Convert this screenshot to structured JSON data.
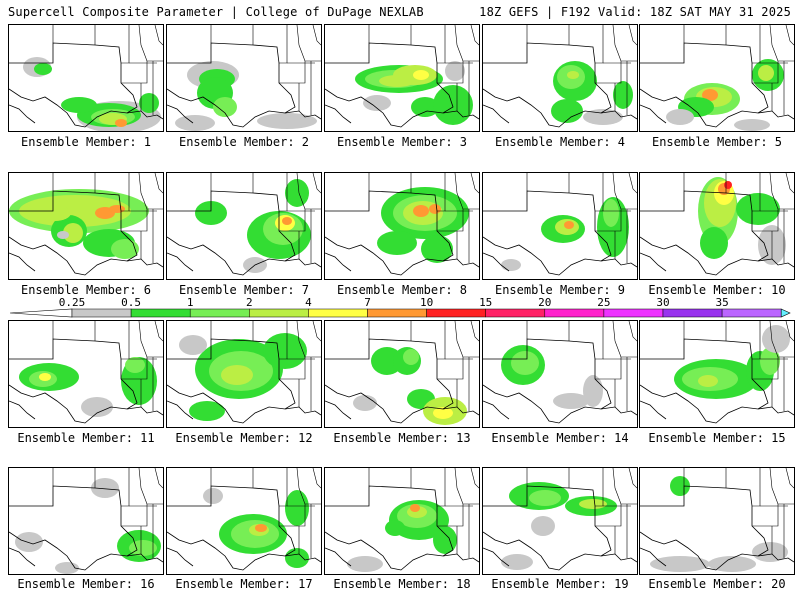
{
  "header": {
    "title": "Supercell Composite Parameter | College of DuPage NEXLAB",
    "run_info": "18Z GEFS | F192 Valid: 18Z SAT MAY 31 2025"
  },
  "colorbar": {
    "thresholds": [
      "0.25",
      "0.5",
      "1",
      "2",
      "4",
      "7",
      "10",
      "15",
      "20",
      "25",
      "30",
      "35"
    ],
    "colors": [
      "#c8c8c8",
      "#33dd33",
      "#77ee55",
      "#bbee44",
      "#ffff44",
      "#ff9933",
      "#ff2222",
      "#ff2266",
      "#ff22cc",
      "#ee33ff",
      "#9933ee",
      "#bb66ff",
      "#66eeff"
    ]
  },
  "members": [
    {
      "caption": "Ensemble Member: 1"
    },
    {
      "caption": "Ensemble Member: 2"
    },
    {
      "caption": "Ensemble Member: 3"
    },
    {
      "caption": "Ensemble Member: 4"
    },
    {
      "caption": "Ensemble Member: 5"
    },
    {
      "caption": "Ensemble Member: 6"
    },
    {
      "caption": "Ensemble Member: 7"
    },
    {
      "caption": "Ensemble Member: 8"
    },
    {
      "caption": "Ensemble Member: 9"
    },
    {
      "caption": "Ensemble Member: 10"
    },
    {
      "caption": "Ensemble Member: 11"
    },
    {
      "caption": "Ensemble Member: 12"
    },
    {
      "caption": "Ensemble Member: 13"
    },
    {
      "caption": "Ensemble Member: 14"
    },
    {
      "caption": "Ensemble Member: 15"
    },
    {
      "caption": "Ensemble Member: 16"
    },
    {
      "caption": "Ensemble Member: 17"
    },
    {
      "caption": "Ensemble Member: 18"
    },
    {
      "caption": "Ensemble Member: 19"
    },
    {
      "caption": "Ensemble Member: 20"
    }
  ]
}
